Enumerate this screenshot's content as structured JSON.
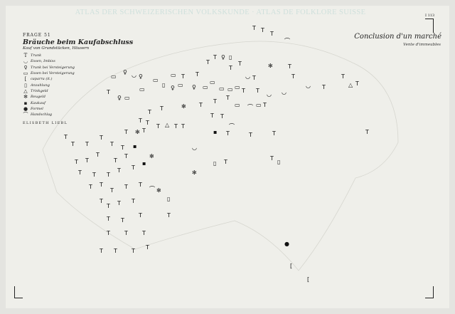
{
  "header": {
    "atlas_title": "ATLAS DER SCHWEIZERISCHEN VOLKSKUNDE · ATLAS DE FOLKLORE SUISSE",
    "page_number": "I 113"
  },
  "map": {
    "frage": "FRAGE 51",
    "title_de": "Bräuche beim Kaufabschluss",
    "subtitle_de": "Kauf von Grundstücken, Häusern",
    "title_fr": "Conclusion d'un marché",
    "subtitle_fr": "Vente d'immeubles",
    "author": "ELISBETH LIEBL",
    "legend": [
      {
        "icon": "goblet-icon",
        "symbol": "T",
        "label": "Trunk"
      },
      {
        "icon": "bowl-icon",
        "symbol": "◡",
        "label": "Essen, Imbiss"
      },
      {
        "icon": "open-goblet-icon",
        "symbol": "♀",
        "label": "Trunk bei Versteigerung"
      },
      {
        "icon": "open-rectangle-icon",
        "symbol": "▭",
        "label": "Essen bei Versteigerung"
      },
      {
        "icon": "bracket-icon",
        "symbol": "[",
        "label": "caparra (it.)"
      },
      {
        "icon": "double-rectangle-icon",
        "symbol": "▯",
        "label": "Anzahlung"
      },
      {
        "icon": "triangle-icon",
        "symbol": "△",
        "label": "Trinkgeld"
      },
      {
        "icon": "asterisk-icon",
        "symbol": "✻",
        "label": "Reugeld"
      },
      {
        "icon": "square-dot-icon",
        "symbol": "▪",
        "label": "Kaukauf"
      },
      {
        "icon": "dot-icon",
        "symbol": "●",
        "label": "Formel"
      },
      {
        "icon": "arch-icon",
        "symbol": "⌒",
        "label": "Handschlag"
      }
    ]
  }
}
